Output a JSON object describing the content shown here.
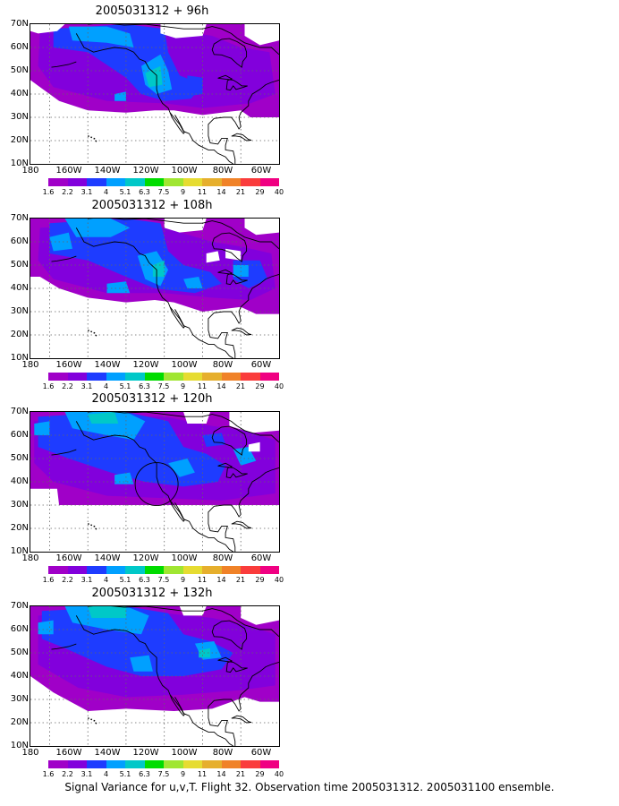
{
  "panels": [
    {
      "title": "2005031312 + 96h"
    },
    {
      "title": "2005031312 + 108h"
    },
    {
      "title": "2005031312 + 120h"
    },
    {
      "title": "2005031312 + 132h"
    }
  ],
  "lat_labels": [
    "70N",
    "60N",
    "50N",
    "40N",
    "30N",
    "20N",
    "10N"
  ],
  "lon_labels": [
    "180",
    "160W",
    "140W",
    "120W",
    "100W",
    "80W",
    "60W"
  ],
  "colorbar": {
    "colors": [
      "#a000c8",
      "#8200dc",
      "#1e3cff",
      "#00a0ff",
      "#00c8c8",
      "#00dc00",
      "#a0e632",
      "#e6dc32",
      "#e6af2d",
      "#f08228",
      "#fa3c3c",
      "#f00082"
    ],
    "labels": [
      "1.6",
      "2.2",
      "3.1",
      "4",
      "5.1",
      "6.3",
      "7.5",
      "9",
      "11",
      "14",
      "21",
      "29",
      "40"
    ]
  },
  "footer": "Signal Variance for u,v,T. Flight 32. Observation time 2005031312. 2005031100 ensemble."
}
